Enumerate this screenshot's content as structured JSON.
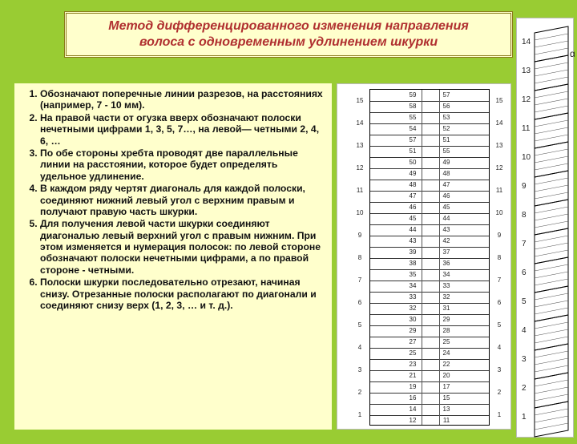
{
  "title": {
    "line1": "Метод дифференцированного изменения направления",
    "line2": "волоса с одновременным удлинением шкурки"
  },
  "list_items": [
    "Обозначают поперечные линии разрезов, на расстояниях (например, 7 - 10 мм).",
    "На правой части от огузка вверх обозначают полоски нечетными цифрами 1, 3, 5, 7…, на левой— четными 2, 4, 6, …",
    "По обе стороны хребта проводят две параллельные линии на расстоянии, которое будет определять удельное удлинение.",
    "В каждом ряду чертят диагональ для каждой полоски, соединяют нижний левый угол с верхним правым и получают правую часть шкурки.",
    "Для получения левой части шкурки соединяют диагональю левый верхний угол с правым нижним. При этом изменяется и нумерация полосок: по левой стороне обозначают полоски нечетными цифрами, а по правой стороне - четными.",
    "Полоски шкурки последовательно отрезают, начиная снизу. Отрезанные полоски располагают по диагонали и соединяют снизу верх (1, 2, 3, … и т. д.)."
  ],
  "diagram_a": {
    "rows": 30,
    "center_pairs": [
      [
        59,
        57
      ],
      [
        58,
        56
      ],
      [
        55,
        53
      ],
      [
        54,
        52
      ],
      [
        57,
        51
      ],
      [
        51,
        55
      ],
      [
        50,
        49
      ],
      [
        49,
        48
      ],
      [
        48,
        47
      ],
      [
        47,
        46
      ],
      [
        46,
        45
      ],
      [
        45,
        44
      ],
      [
        44,
        43
      ],
      [
        43,
        42
      ],
      [
        39,
        37
      ],
      [
        38,
        36
      ],
      [
        35,
        34
      ],
      [
        34,
        33
      ],
      [
        33,
        32
      ],
      [
        32,
        31
      ],
      [
        30,
        29
      ],
      [
        29,
        28
      ],
      [
        27,
        25
      ],
      [
        25,
        24
      ],
      [
        23,
        22
      ],
      [
        21,
        20
      ],
      [
        19,
        17
      ],
      [
        16,
        15
      ],
      [
        14,
        13
      ],
      [
        12,
        11
      ]
    ],
    "left_side_labels": [
      1,
      2,
      3,
      4,
      5,
      6,
      7,
      8,
      9,
      10,
      11,
      12,
      13,
      14,
      15
    ],
    "right_side_labels": [
      1,
      2,
      3,
      4,
      5,
      6,
      7,
      8,
      9,
      10,
      11,
      12,
      13,
      14,
      15
    ],
    "tick_color": "#333333",
    "line_color": "#555555",
    "background": "#ffffff",
    "font_size": 8
  },
  "diagram_b": {
    "stripe_count": 14,
    "labels": [
      14,
      13,
      12,
      11,
      10,
      9,
      8,
      7,
      6,
      5,
      4,
      3,
      2,
      1
    ],
    "alpha": "α",
    "stroke": "#000000",
    "background": "#ffffff",
    "font_size": 10,
    "stripe_height": 36
  },
  "colors": {
    "page_bg": "#99cc33",
    "panel_bg": "#ffffcc",
    "title_text": "#b03030",
    "body_text": "#111111"
  },
  "typography": {
    "title_pt": 16,
    "body_pt": 12,
    "title_weight": "bold",
    "title_style": "italic",
    "body_weight": "bold"
  }
}
